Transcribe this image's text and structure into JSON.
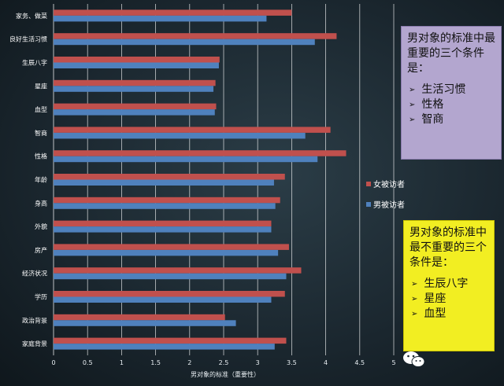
{
  "chart_data": {
    "type": "bar",
    "orientation": "horizontal",
    "categories": [
      "家庭背景",
      "政治背景",
      "学历",
      "经济状况",
      "房产",
      "外貌",
      "身高",
      "年龄",
      "性格",
      "智商",
      "血型",
      "星座",
      "生辰八字",
      "良好生活习惯",
      "家务、做菜"
    ],
    "series": [
      {
        "name": "女被访者",
        "color": "#c0504d",
        "values": [
          3.42,
          2.52,
          3.4,
          3.64,
          3.46,
          3.2,
          3.33,
          3.4,
          4.3,
          4.07,
          2.39,
          2.38,
          2.44,
          4.16,
          3.5
        ]
      },
      {
        "name": "男被访者",
        "color": "#4f81bd",
        "values": [
          3.25,
          2.68,
          3.2,
          3.42,
          3.3,
          3.2,
          3.26,
          3.24,
          3.88,
          3.7,
          2.37,
          2.35,
          2.43,
          3.84,
          3.13
        ]
      }
    ],
    "xlim": [
      0,
      5
    ],
    "xticks": [
      "0",
      "0.5",
      "1",
      "1.5",
      "2",
      "2.5",
      "3",
      "3.5",
      "4",
      "4.5",
      "5"
    ],
    "xlabel": "男对象的标准（重要性）",
    "ylabel": "",
    "grid": true,
    "legend_position": "right"
  },
  "notes": {
    "most_important": {
      "title": "男对象的标准中最重要的三个条件是：",
      "items": [
        "生活习惯",
        "性格",
        "智商"
      ]
    },
    "least_important": {
      "title": "男对象的标准中最不重要的三个条件是：",
      "items": [
        "生辰八字",
        "星座",
        "血型"
      ]
    }
  },
  "colors": {
    "female": "#c0504d",
    "male": "#4f81bd"
  },
  "icons": {
    "watermark": "wechat-icon",
    "bullet": "arrow-bullet-icon"
  }
}
